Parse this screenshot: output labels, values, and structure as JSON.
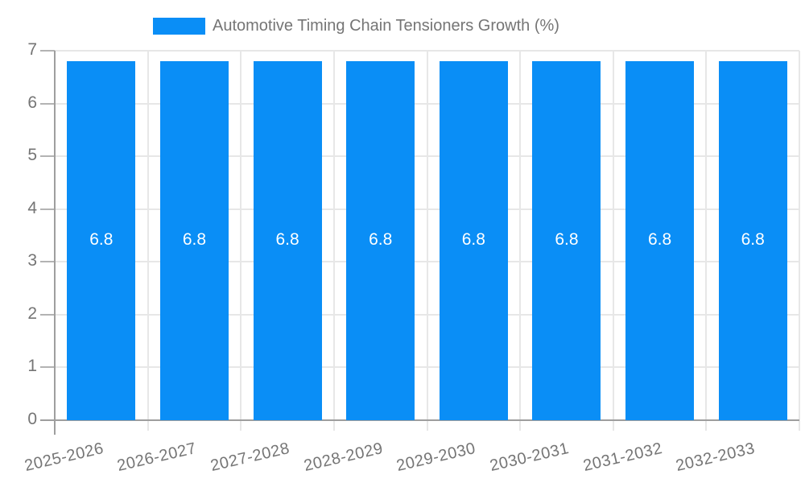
{
  "chart_data": {
    "type": "bar",
    "title": "Automotive Timing Chain Tensioners Growth (%)",
    "xlabel": "",
    "ylabel": "",
    "categories": [
      "2025-2026",
      "2026-2027",
      "2027-2028",
      "2028-2029",
      "2029-2030",
      "2030-2031",
      "2031-2032",
      "2032-2033"
    ],
    "series": [
      {
        "name": "Automotive Timing Chain Tensioners Growth (%)",
        "values": [
          6.8,
          6.8,
          6.8,
          6.8,
          6.8,
          6.8,
          6.8,
          6.8
        ]
      }
    ],
    "value_labels": [
      "6.8",
      "6.8",
      "6.8",
      "6.8",
      "6.8",
      "6.8",
      "6.8",
      "6.8"
    ],
    "ylim": [
      0,
      7
    ],
    "y_ticks": [
      0,
      1,
      2,
      3,
      4,
      5,
      6,
      7
    ],
    "grid": true,
    "legend_position": "top",
    "colors": {
      "bar": "#0a8ef6",
      "value_label": "#ffffff",
      "axis_text": "#757575",
      "gridline": "#e7e7e7",
      "axis_line": "#9e9e9e",
      "tick": "#b3b3b3",
      "background": "#ffffff"
    }
  }
}
